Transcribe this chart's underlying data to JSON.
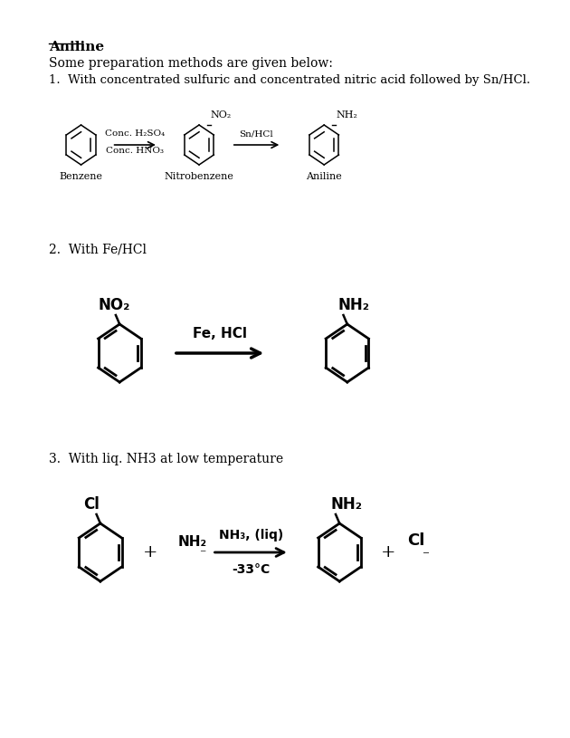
{
  "title": "Aniline",
  "subtitle": "Some preparation methods are given below:",
  "bg_color": "#ffffff",
  "text_color": "#000000",
  "method1_text": "1.  With concentrated sulfuric and concentrated nitric acid followed by Sn/HCl.",
  "method2_text": "2.  With Fe/HCl",
  "method3_text": "3.  With liq. NH3 at low temperature",
  "reagent1a": "Conc. H₂SO₄",
  "reagent1b": "Conc. HNO₃",
  "reagent2": "Sn/HCl",
  "label_benzene": "Benzene",
  "label_nitrobenzene": "Nitrobenzene",
  "label_aniline": "Aniline",
  "reagent3": "Fe, HCl",
  "reagent4a": "NH₃, (liq)",
  "reagent4b": "-33°C"
}
